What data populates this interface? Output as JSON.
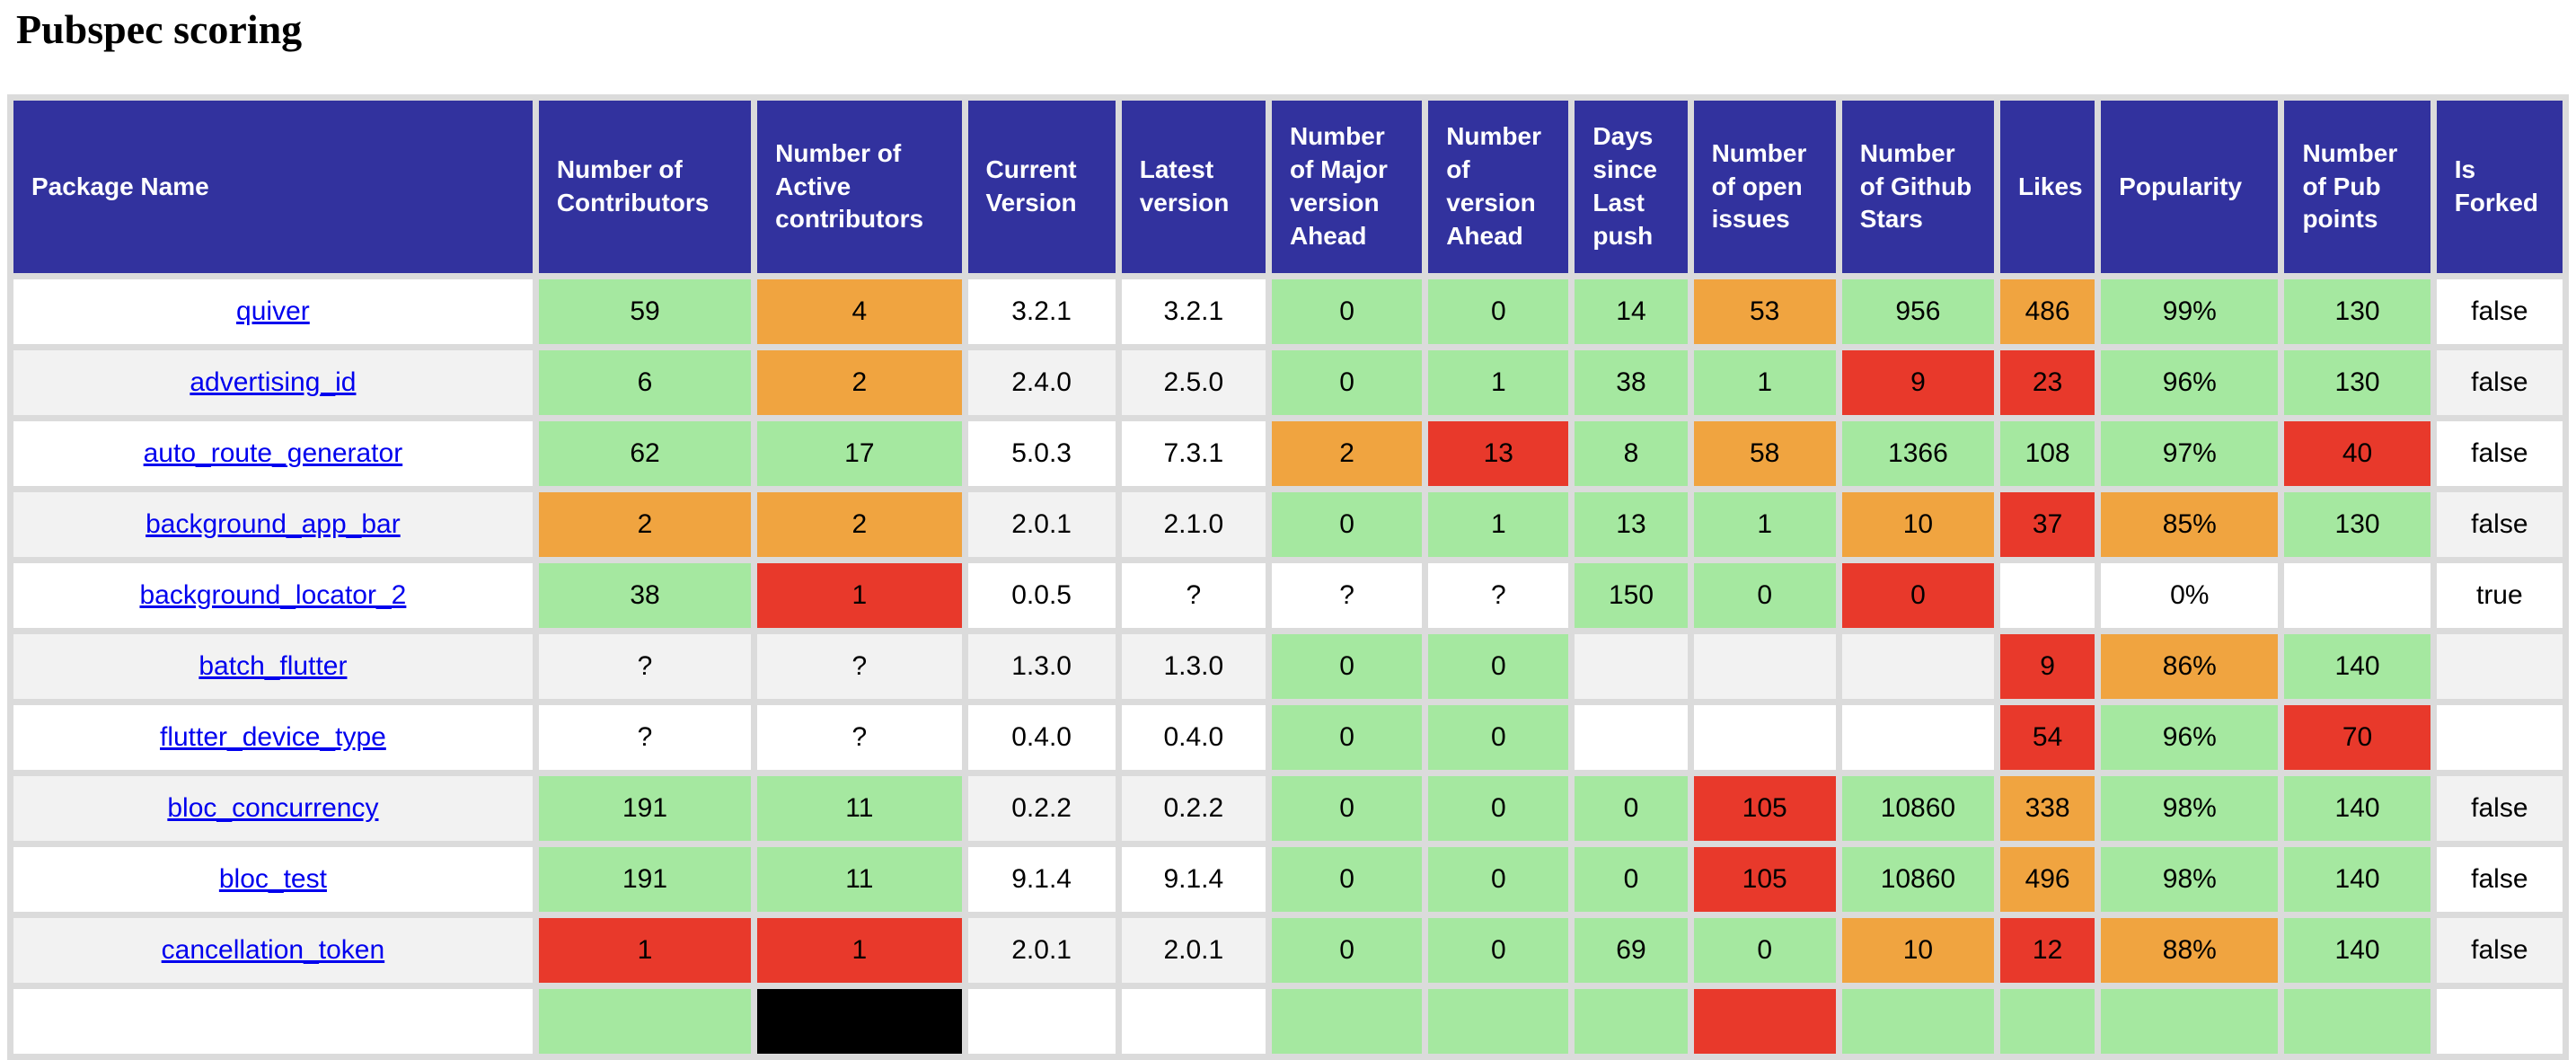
{
  "title": "Pubspec scoring",
  "colors": {
    "header_bg": "#32329E",
    "green": "#A5E8A0",
    "orange": "#F0A440",
    "red": "#E8392B",
    "black_cell": "#000000",
    "row_bg": "#FFFFFF",
    "row_alt_bg": "#F2F2F2",
    "grid_gap": "#DBDBDB",
    "link": "#0000EE",
    "header_text": "#FFFFFF",
    "cell_text": "#000000",
    "cell_text_inverse": "#FFFFFF"
  },
  "table": {
    "columns": [
      "Package Name",
      "Number of Contributors",
      "Number of Active contributors",
      "Current Version",
      "Latest version",
      "Number of Major version Ahead",
      "Number of version Ahead",
      "Days since Last push",
      "Number of open issues",
      "Number of Github Stars",
      "Likes",
      "Popularity",
      "Number of Pub points",
      "Is Forked"
    ],
    "rows": [
      {
        "package": "quiver",
        "cells": [
          {
            "v": "59",
            "c": "green"
          },
          {
            "v": "4",
            "c": "orange"
          },
          {
            "v": "3.2.1",
            "c": "none"
          },
          {
            "v": "3.2.1",
            "c": "none"
          },
          {
            "v": "0",
            "c": "green"
          },
          {
            "v": "0",
            "c": "green"
          },
          {
            "v": "14",
            "c": "green"
          },
          {
            "v": "53",
            "c": "orange"
          },
          {
            "v": "956",
            "c": "green"
          },
          {
            "v": "486",
            "c": "orange"
          },
          {
            "v": "99%",
            "c": "green"
          },
          {
            "v": "130",
            "c": "green"
          },
          {
            "v": "false",
            "c": "none"
          }
        ]
      },
      {
        "package": "advertising_id",
        "cells": [
          {
            "v": "6",
            "c": "green"
          },
          {
            "v": "2",
            "c": "orange"
          },
          {
            "v": "2.4.0",
            "c": "none"
          },
          {
            "v": "2.5.0",
            "c": "none"
          },
          {
            "v": "0",
            "c": "green"
          },
          {
            "v": "1",
            "c": "green"
          },
          {
            "v": "38",
            "c": "green"
          },
          {
            "v": "1",
            "c": "green"
          },
          {
            "v": "9",
            "c": "red"
          },
          {
            "v": "23",
            "c": "red"
          },
          {
            "v": "96%",
            "c": "green"
          },
          {
            "v": "130",
            "c": "green"
          },
          {
            "v": "false",
            "c": "none"
          }
        ]
      },
      {
        "package": "auto_route_generator",
        "cells": [
          {
            "v": "62",
            "c": "green"
          },
          {
            "v": "17",
            "c": "green"
          },
          {
            "v": "5.0.3",
            "c": "none"
          },
          {
            "v": "7.3.1",
            "c": "none"
          },
          {
            "v": "2",
            "c": "orange"
          },
          {
            "v": "13",
            "c": "red"
          },
          {
            "v": "8",
            "c": "green"
          },
          {
            "v": "58",
            "c": "orange"
          },
          {
            "v": "1366",
            "c": "green"
          },
          {
            "v": "108",
            "c": "green"
          },
          {
            "v": "97%",
            "c": "green"
          },
          {
            "v": "40",
            "c": "red"
          },
          {
            "v": "false",
            "c": "none"
          }
        ]
      },
      {
        "package": "background_app_bar",
        "cells": [
          {
            "v": "2",
            "c": "orange"
          },
          {
            "v": "2",
            "c": "orange"
          },
          {
            "v": "2.0.1",
            "c": "none"
          },
          {
            "v": "2.1.0",
            "c": "none"
          },
          {
            "v": "0",
            "c": "green"
          },
          {
            "v": "1",
            "c": "green"
          },
          {
            "v": "13",
            "c": "green"
          },
          {
            "v": "1",
            "c": "green"
          },
          {
            "v": "10",
            "c": "orange"
          },
          {
            "v": "37",
            "c": "red"
          },
          {
            "v": "85%",
            "c": "orange"
          },
          {
            "v": "130",
            "c": "green"
          },
          {
            "v": "false",
            "c": "none"
          }
        ]
      },
      {
        "package": "background_locator_2",
        "cells": [
          {
            "v": "38",
            "c": "green"
          },
          {
            "v": "1",
            "c": "red"
          },
          {
            "v": "0.0.5",
            "c": "none"
          },
          {
            "v": "?",
            "c": "none"
          },
          {
            "v": "?",
            "c": "none"
          },
          {
            "v": "?",
            "c": "none"
          },
          {
            "v": "150",
            "c": "green"
          },
          {
            "v": "0",
            "c": "green"
          },
          {
            "v": "0",
            "c": "red"
          },
          {
            "v": "",
            "c": "none"
          },
          {
            "v": "0%",
            "c": "none"
          },
          {
            "v": "",
            "c": "none"
          },
          {
            "v": "true",
            "c": "none"
          }
        ]
      },
      {
        "package": "batch_flutter",
        "cells": [
          {
            "v": "?",
            "c": "none"
          },
          {
            "v": "?",
            "c": "none"
          },
          {
            "v": "1.3.0",
            "c": "none"
          },
          {
            "v": "1.3.0",
            "c": "none"
          },
          {
            "v": "0",
            "c": "green"
          },
          {
            "v": "0",
            "c": "green"
          },
          {
            "v": "",
            "c": "none"
          },
          {
            "v": "",
            "c": "none"
          },
          {
            "v": "",
            "c": "none"
          },
          {
            "v": "9",
            "c": "red"
          },
          {
            "v": "86%",
            "c": "orange"
          },
          {
            "v": "140",
            "c": "green"
          },
          {
            "v": "",
            "c": "none"
          }
        ]
      },
      {
        "package": "flutter_device_type",
        "cells": [
          {
            "v": "?",
            "c": "none"
          },
          {
            "v": "?",
            "c": "none"
          },
          {
            "v": "0.4.0",
            "c": "none"
          },
          {
            "v": "0.4.0",
            "c": "none"
          },
          {
            "v": "0",
            "c": "green"
          },
          {
            "v": "0",
            "c": "green"
          },
          {
            "v": "",
            "c": "none"
          },
          {
            "v": "",
            "c": "none"
          },
          {
            "v": "",
            "c": "none"
          },
          {
            "v": "54",
            "c": "red"
          },
          {
            "v": "96%",
            "c": "green"
          },
          {
            "v": "70",
            "c": "red"
          },
          {
            "v": "",
            "c": "none"
          }
        ]
      },
      {
        "package": "bloc_concurrency",
        "cells": [
          {
            "v": "191",
            "c": "green"
          },
          {
            "v": "11",
            "c": "green"
          },
          {
            "v": "0.2.2",
            "c": "none"
          },
          {
            "v": "0.2.2",
            "c": "none"
          },
          {
            "v": "0",
            "c": "green"
          },
          {
            "v": "0",
            "c": "green"
          },
          {
            "v": "0",
            "c": "green"
          },
          {
            "v": "105",
            "c": "red"
          },
          {
            "v": "10860",
            "c": "green"
          },
          {
            "v": "338",
            "c": "orange"
          },
          {
            "v": "98%",
            "c": "green"
          },
          {
            "v": "140",
            "c": "green"
          },
          {
            "v": "false",
            "c": "none"
          }
        ]
      },
      {
        "package": "bloc_test",
        "cells": [
          {
            "v": "191",
            "c": "green"
          },
          {
            "v": "11",
            "c": "green"
          },
          {
            "v": "9.1.4",
            "c": "none"
          },
          {
            "v": "9.1.4",
            "c": "none"
          },
          {
            "v": "0",
            "c": "green"
          },
          {
            "v": "0",
            "c": "green"
          },
          {
            "v": "0",
            "c": "green"
          },
          {
            "v": "105",
            "c": "red"
          },
          {
            "v": "10860",
            "c": "green"
          },
          {
            "v": "496",
            "c": "orange"
          },
          {
            "v": "98%",
            "c": "green"
          },
          {
            "v": "140",
            "c": "green"
          },
          {
            "v": "false",
            "c": "none"
          }
        ]
      },
      {
        "package": "cancellation_token",
        "cells": [
          {
            "v": "1",
            "c": "red"
          },
          {
            "v": "1",
            "c": "red"
          },
          {
            "v": "2.0.1",
            "c": "none"
          },
          {
            "v": "2.0.1",
            "c": "none"
          },
          {
            "v": "0",
            "c": "green"
          },
          {
            "v": "0",
            "c": "green"
          },
          {
            "v": "69",
            "c": "green"
          },
          {
            "v": "0",
            "c": "green"
          },
          {
            "v": "10",
            "c": "orange"
          },
          {
            "v": "12",
            "c": "red"
          },
          {
            "v": "88%",
            "c": "orange"
          },
          {
            "v": "140",
            "c": "green"
          },
          {
            "v": "false",
            "c": "none"
          }
        ]
      },
      {
        "package": "",
        "cells": [
          {
            "v": "",
            "c": "green"
          },
          {
            "v": "",
            "c": "black"
          },
          {
            "v": "",
            "c": "none"
          },
          {
            "v": "",
            "c": "none"
          },
          {
            "v": "",
            "c": "green"
          },
          {
            "v": "",
            "c": "green"
          },
          {
            "v": "",
            "c": "green"
          },
          {
            "v": "",
            "c": "red"
          },
          {
            "v": "",
            "c": "green"
          },
          {
            "v": "",
            "c": "green"
          },
          {
            "v": "",
            "c": "green"
          },
          {
            "v": "",
            "c": "green"
          },
          {
            "v": "",
            "c": "none"
          }
        ]
      }
    ]
  }
}
